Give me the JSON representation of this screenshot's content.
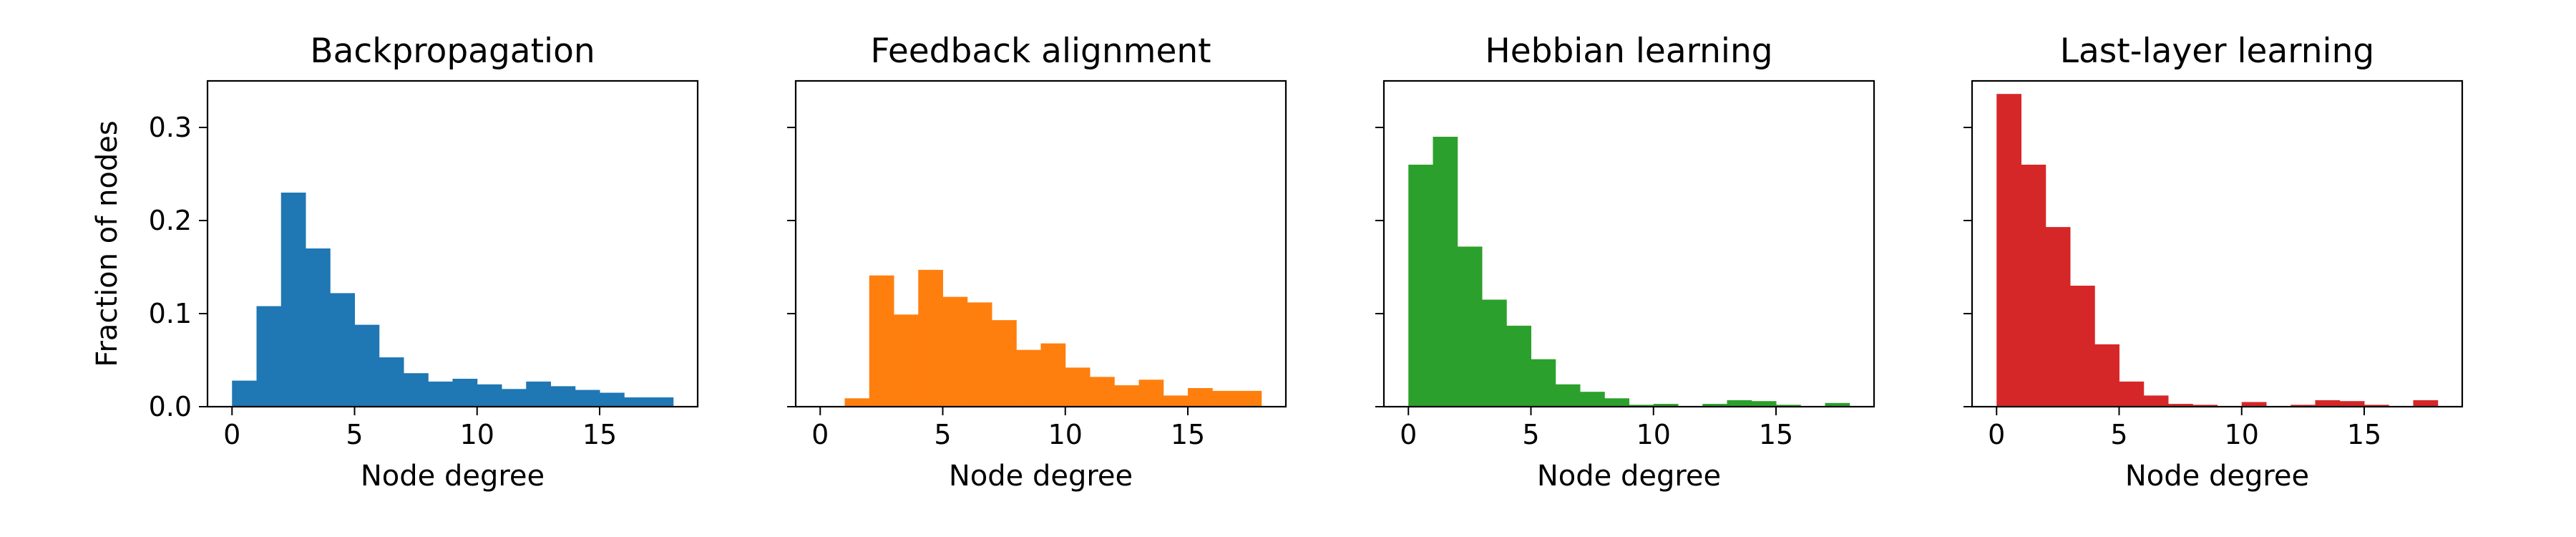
{
  "figure": {
    "ylabel": "Fraction of nodes",
    "ylim": [
      0,
      0.35
    ],
    "yticks": [
      0.0,
      0.1,
      0.2,
      0.3
    ],
    "ytick_labels": [
      "0.0",
      "0.1",
      "0.2",
      "0.3"
    ],
    "xlim": [
      -1,
      19
    ],
    "xticks": [
      0,
      5,
      10,
      15
    ],
    "xtick_labels": [
      "0",
      "5",
      "10",
      "15"
    ]
  },
  "chart_data": [
    {
      "type": "bar",
      "title": "Backpropagation",
      "xlabel": "Node degree",
      "ylabel": "Fraction of nodes",
      "color": "#1f77b4",
      "bin_width": 1,
      "bin_starts": [
        0,
        1,
        2,
        3,
        4,
        5,
        6,
        7,
        8,
        9,
        10,
        11,
        12,
        13,
        14,
        15,
        16,
        17
      ],
      "values": [
        0.028,
        0.108,
        0.23,
        0.17,
        0.122,
        0.088,
        0.053,
        0.036,
        0.027,
        0.03,
        0.024,
        0.019,
        0.027,
        0.022,
        0.018,
        0.015,
        0.01,
        0.01
      ]
    },
    {
      "type": "bar",
      "title": "Feedback alignment",
      "xlabel": "Node degree",
      "color": "#ff7f0e",
      "bin_width": 1,
      "bin_starts": [
        0,
        1,
        2,
        3,
        4,
        5,
        6,
        7,
        8,
        9,
        10,
        11,
        12,
        13,
        14,
        15,
        16,
        17
      ],
      "values": [
        0.0,
        0.009,
        0.141,
        0.099,
        0.147,
        0.118,
        0.112,
        0.093,
        0.061,
        0.068,
        0.042,
        0.032,
        0.023,
        0.029,
        0.012,
        0.02,
        0.017,
        0.017
      ]
    },
    {
      "type": "bar",
      "title": "Hebbian learning",
      "xlabel": "Node degree",
      "color": "#2ca02c",
      "bin_width": 1,
      "bin_starts": [
        0,
        1,
        2,
        3,
        4,
        5,
        6,
        7,
        8,
        9,
        10,
        11,
        12,
        13,
        14,
        15,
        16,
        17
      ],
      "values": [
        0.26,
        0.29,
        0.172,
        0.115,
        0.087,
        0.051,
        0.024,
        0.016,
        0.009,
        0.002,
        0.003,
        0.0,
        0.003,
        0.007,
        0.006,
        0.002,
        0.0,
        0.004
      ]
    },
    {
      "type": "bar",
      "title": "Last-layer learning",
      "xlabel": "Node degree",
      "color": "#d62728",
      "bin_width": 1,
      "bin_starts": [
        0,
        1,
        2,
        3,
        4,
        5,
        6,
        7,
        8,
        9,
        10,
        11,
        12,
        13,
        14,
        15,
        16,
        17
      ],
      "values": [
        0.336,
        0.26,
        0.193,
        0.13,
        0.067,
        0.027,
        0.012,
        0.003,
        0.002,
        0.0,
        0.005,
        0.0,
        0.002,
        0.007,
        0.006,
        0.002,
        0.0,
        0.007
      ]
    }
  ]
}
